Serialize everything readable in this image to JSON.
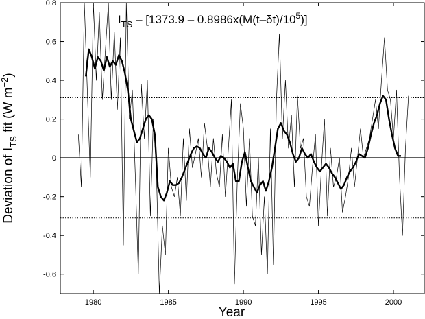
{
  "chart_data": {
    "type": "line",
    "title_parts": {
      "i": "I",
      "ts_sub": "TS",
      "body": " – [1373.9 – 0.8986x(M(t–δt)/10",
      "exp": "5",
      "close": ")]"
    },
    "xlabel": "Year",
    "ylabel_parts": {
      "pre": "Deviation of I",
      "sub": "TS",
      "mid": " fit (W m",
      "sup": "−2",
      "post": ")"
    },
    "xlim": [
      1977.8,
      2002.1
    ],
    "ylim": [
      -0.7,
      0.8
    ],
    "xticks": [
      1980,
      1985,
      1990,
      1995,
      2000
    ],
    "xtick_labels": [
      "1980",
      "1985",
      "1990",
      "1995",
      "2000"
    ],
    "yticks": [
      -0.6,
      -0.4,
      -0.2,
      0,
      0.2,
      0.4,
      0.6,
      0.8
    ],
    "ytick_labels": [
      "-0.6",
      "-0.4",
      "-0.2",
      "0",
      "0.2",
      "0.4",
      "0.6",
      "0.8"
    ],
    "reference_lines": [
      {
        "y": 0,
        "style": "solid"
      },
      {
        "y": 0.31,
        "style": "dotted"
      },
      {
        "y": -0.31,
        "style": "dotted"
      }
    ],
    "grid": false,
    "series": [
      {
        "role": "monthly deviations (thin line)",
        "x": [
          1979.0,
          1979.2,
          1979.4,
          1979.6,
          1979.8,
          1980.0,
          1980.2,
          1980.4,
          1980.6,
          1980.8,
          1981.0,
          1981.2,
          1981.4,
          1981.6,
          1981.8,
          1982.0,
          1982.2,
          1982.4,
          1982.6,
          1982.8,
          1983.0,
          1983.2,
          1983.4,
          1983.6,
          1983.8,
          1984.0,
          1984.2,
          1984.4,
          1984.6,
          1984.8,
          1985.0,
          1985.2,
          1985.4,
          1985.6,
          1985.8,
          1986.0,
          1986.2,
          1986.4,
          1986.6,
          1986.8,
          1987.0,
          1987.2,
          1987.4,
          1987.6,
          1987.8,
          1988.0,
          1988.2,
          1988.4,
          1988.6,
          1988.8,
          1989.0,
          1989.2,
          1989.4,
          1989.6,
          1989.8,
          1990.0,
          1990.2,
          1990.4,
          1990.6,
          1990.8,
          1991.0,
          1991.2,
          1991.4,
          1991.6,
          1991.8,
          1992.0,
          1992.2,
          1992.4,
          1992.6,
          1992.8,
          1993.0,
          1993.2,
          1993.4,
          1993.6,
          1993.8,
          1994.0,
          1994.2,
          1994.4,
          1994.6,
          1994.8,
          1995.0,
          1995.2,
          1995.4,
          1995.6,
          1995.8,
          1996.0,
          1996.2,
          1996.4,
          1996.6,
          1996.8,
          1997.0,
          1997.2,
          1997.4,
          1997.6,
          1997.8,
          1998.0,
          1998.2,
          1998.4,
          1998.6,
          1998.8,
          1999.0,
          1999.2,
          1999.4,
          1999.6,
          1999.8,
          2000.0,
          2000.2,
          2000.4,
          2000.6,
          2000.8,
          2001.0
        ],
        "y": [
          0.12,
          -0.15,
          0.8,
          0.35,
          -0.1,
          0.8,
          0.4,
          0.75,
          0.3,
          0.55,
          0.8,
          0.3,
          0.65,
          0.25,
          0.62,
          -0.45,
          0.8,
          0.2,
          0.35,
          -0.1,
          -0.6,
          0.38,
          0.1,
          0.4,
          -0.3,
          0.2,
          -0.05,
          -0.7,
          -0.35,
          -0.5,
          0.05,
          -0.15,
          -0.2,
          -0.1,
          -0.3,
          0.1,
          -0.22,
          0.15,
          -0.05,
          0.02,
          0.1,
          -0.1,
          0.18,
          0.05,
          -0.15,
          0.1,
          -0.08,
          -0.15,
          0.12,
          -0.2,
          0.05,
          0.3,
          -0.65,
          -0.1,
          0.28,
          0.15,
          -0.25,
          0.1,
          -0.3,
          -0.35,
          0.0,
          -0.5,
          -0.2,
          -0.6,
          0.15,
          -0.55,
          0.3,
          0.64,
          0.1,
          0.4,
          0.05,
          0.22,
          -0.15,
          0.32,
          0.05,
          0.1,
          -0.2,
          -0.25,
          -0.05,
          0.12,
          -0.35,
          -0.05,
          0.2,
          -0.3,
          0.05,
          -0.15,
          -0.1,
          0.0,
          -0.28,
          -0.2,
          -0.1,
          0.05,
          -0.15,
          0.0,
          0.15,
          0.0,
          0.05,
          0.1,
          0.2,
          0.3,
          0.15,
          0.4,
          0.62,
          0.35,
          0.3,
          0.1,
          0.35,
          -0.1,
          -0.4,
          0.05,
          0.32
        ]
      },
      {
        "role": "smoothed running mean (thick line)",
        "x": [
          1979.5,
          1979.7,
          1979.9,
          1980.1,
          1980.3,
          1980.5,
          1980.7,
          1980.9,
          1981.1,
          1981.3,
          1981.5,
          1981.7,
          1981.9,
          1982.1,
          1982.3,
          1982.5,
          1982.7,
          1982.9,
          1983.1,
          1983.3,
          1983.5,
          1983.7,
          1983.9,
          1984.1,
          1984.3,
          1984.5,
          1984.7,
          1984.9,
          1985.1,
          1985.3,
          1985.5,
          1985.7,
          1985.9,
          1986.1,
          1986.3,
          1986.5,
          1986.7,
          1986.9,
          1987.1,
          1987.3,
          1987.5,
          1987.7,
          1987.9,
          1988.1,
          1988.3,
          1988.5,
          1988.7,
          1988.9,
          1989.1,
          1989.3,
          1989.5,
          1989.7,
          1989.9,
          1990.1,
          1990.3,
          1990.5,
          1990.7,
          1990.9,
          1991.1,
          1991.3,
          1991.5,
          1991.7,
          1991.9,
          1992.1,
          1992.3,
          1992.5,
          1992.7,
          1992.9,
          1993.1,
          1993.3,
          1993.5,
          1993.7,
          1993.9,
          1994.1,
          1994.3,
          1994.5,
          1994.7,
          1994.9,
          1995.1,
          1995.3,
          1995.5,
          1995.7,
          1995.9,
          1996.1,
          1996.3,
          1996.5,
          1996.7,
          1996.9,
          1997.1,
          1997.3,
          1997.5,
          1997.7,
          1997.9,
          1998.1,
          1998.3,
          1998.5,
          1998.7,
          1998.9,
          1999.1,
          1999.3,
          1999.5,
          1999.7,
          1999.9,
          2000.1,
          2000.3,
          2000.5
        ],
        "y": [
          0.42,
          0.56,
          0.52,
          0.46,
          0.52,
          0.5,
          0.45,
          0.52,
          0.47,
          0.5,
          0.48,
          0.53,
          0.5,
          0.44,
          0.35,
          0.2,
          0.14,
          0.08,
          0.1,
          0.15,
          0.2,
          0.22,
          0.2,
          0.12,
          -0.15,
          -0.2,
          -0.22,
          -0.18,
          -0.12,
          -0.14,
          -0.14,
          -0.13,
          -0.1,
          -0.06,
          -0.02,
          0.02,
          0.05,
          0.06,
          0.05,
          0.02,
          0.0,
          0.05,
          0.03,
          0.0,
          -0.02,
          0.01,
          0.0,
          -0.02,
          -0.05,
          -0.03,
          -0.12,
          -0.12,
          -0.02,
          0.03,
          -0.05,
          -0.12,
          -0.15,
          -0.18,
          -0.14,
          -0.12,
          -0.17,
          -0.12,
          -0.05,
          0.05,
          0.15,
          0.18,
          0.14,
          0.12,
          0.08,
          0.02,
          -0.02,
          0.0,
          0.05,
          0.02,
          0.0,
          0.02,
          -0.02,
          -0.05,
          -0.07,
          -0.05,
          -0.03,
          -0.05,
          -0.08,
          -0.1,
          -0.13,
          -0.16,
          -0.14,
          -0.1,
          -0.07,
          -0.05,
          -0.02,
          0.02,
          0.01,
          0.0,
          0.05,
          0.12,
          0.18,
          0.22,
          0.28,
          0.32,
          0.3,
          0.2,
          0.12,
          0.05,
          0.01,
          0.01
        ]
      }
    ]
  }
}
